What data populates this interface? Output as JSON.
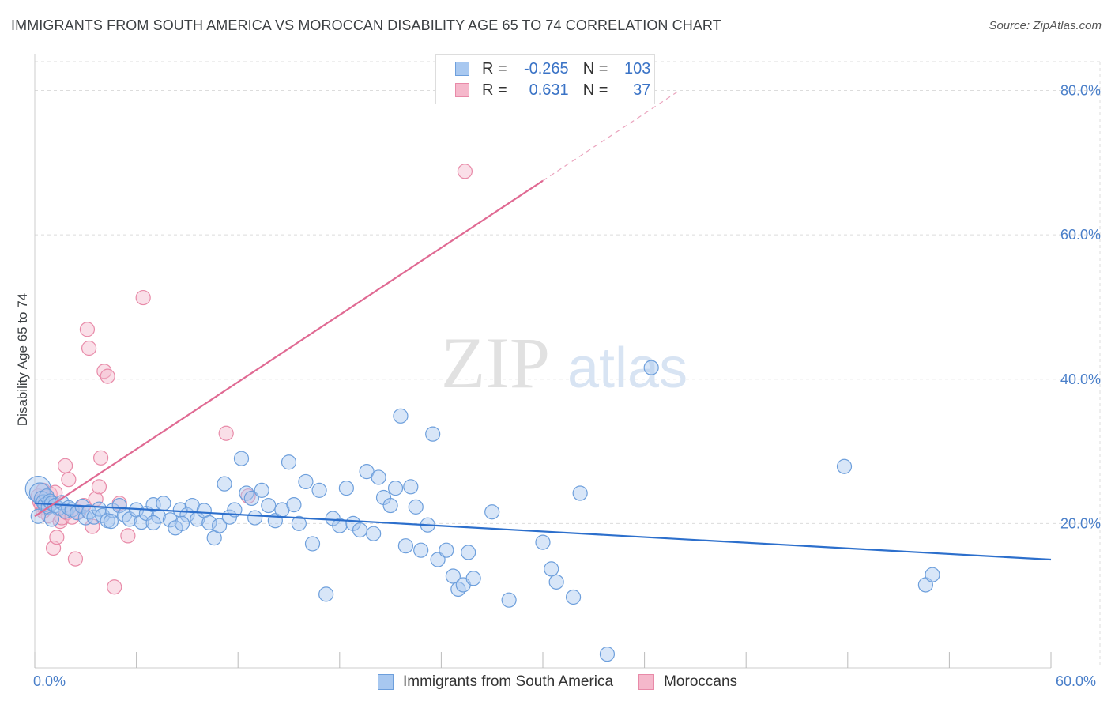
{
  "title": "IMMIGRANTS FROM SOUTH AMERICA VS MOROCCAN DISABILITY AGE 65 TO 74 CORRELATION CHART",
  "source": "Source: ZipAtlas.com",
  "watermark": {
    "zip": "ZIP",
    "atlas": "atlas"
  },
  "legend": {
    "series1": {
      "r_label": "R =",
      "r_value": "-0.265",
      "n_label": "N =",
      "n_value": "103"
    },
    "series2": {
      "r_label": "R =",
      "r_value": "0.631",
      "n_label": "N =",
      "n_value": "37"
    }
  },
  "bottom_legend": {
    "series1": "Immigrants from South America",
    "series2": "Moroccans"
  },
  "x_axis_labels": {
    "min": "0.0%",
    "max": "60.0%"
  },
  "colors": {
    "blue_fill": "#a8c8f0",
    "blue_stroke": "#6d9fdc",
    "blue_line": "#2c6fcc",
    "pink_fill": "#f5b8cb",
    "pink_stroke": "#e88aa8",
    "pink_line": "#e06a93",
    "axis_text": "#4a7fc9",
    "grid": "#dcdcdc"
  },
  "chart_data": {
    "type": "scatter",
    "title": "IMMIGRANTS FROM SOUTH AMERICA VS MOROCCAN DISABILITY AGE 65 TO 74 CORRELATION CHART",
    "xlabel": "",
    "ylabel": "Disability Age 65 to 74",
    "xlim": [
      0,
      60
    ],
    "ylim": [
      0,
      84
    ],
    "y_ticks": [
      20,
      40,
      60,
      80
    ],
    "y_tick_labels": [
      "20.0%",
      "40.0%",
      "60.0%",
      "80.0%"
    ],
    "grid": true,
    "series": [
      {
        "name": "Immigrants from South America",
        "R": -0.265,
        "N": 103,
        "trend": {
          "x0": 0,
          "y0": 22.8,
          "x1": 60,
          "y1": 15.0
        },
        "points": [
          [
            0.2,
            24.8
          ],
          [
            0.3,
            24.2
          ],
          [
            0.4,
            23.5
          ],
          [
            0.5,
            23.0
          ],
          [
            0.6,
            22.6
          ],
          [
            0.7,
            23.8
          ],
          [
            0.8,
            22.3
          ],
          [
            0.9,
            23.1
          ],
          [
            1.0,
            22.8
          ],
          [
            1.2,
            22.5
          ],
          [
            1.4,
            22.1
          ],
          [
            1.6,
            22.9
          ],
          [
            1.8,
            21.7
          ],
          [
            2.0,
            22.2
          ],
          [
            2.2,
            21.9
          ],
          [
            2.5,
            21.5
          ],
          [
            2.8,
            22.4
          ],
          [
            3.0,
            20.8
          ],
          [
            3.2,
            21.6
          ],
          [
            3.5,
            20.9
          ],
          [
            3.8,
            22.0
          ],
          [
            4.0,
            21.1
          ],
          [
            4.3,
            20.4
          ],
          [
            4.6,
            21.8
          ],
          [
            5.0,
            22.5
          ],
          [
            5.3,
            21.2
          ],
          [
            5.6,
            20.6
          ],
          [
            6.0,
            21.9
          ],
          [
            6.3,
            20.2
          ],
          [
            6.6,
            21.4
          ],
          [
            7.0,
            22.6
          ],
          [
            7.3,
            21.0
          ],
          [
            7.6,
            22.8
          ],
          [
            8.0,
            20.5
          ],
          [
            8.3,
            19.4
          ],
          [
            8.6,
            21.9
          ],
          [
            9.0,
            21.2
          ],
          [
            9.3,
            22.5
          ],
          [
            9.6,
            20.6
          ],
          [
            10.0,
            21.8
          ],
          [
            10.3,
            20.1
          ],
          [
            10.6,
            18.0
          ],
          [
            10.9,
            19.7
          ],
          [
            11.2,
            25.5
          ],
          [
            11.5,
            20.9
          ],
          [
            11.8,
            21.9
          ],
          [
            12.2,
            29.0
          ],
          [
            12.5,
            24.2
          ],
          [
            12.8,
            23.5
          ],
          [
            13.0,
            20.8
          ],
          [
            13.4,
            24.6
          ],
          [
            13.8,
            22.5
          ],
          [
            14.2,
            20.4
          ],
          [
            14.6,
            21.9
          ],
          [
            15.0,
            28.5
          ],
          [
            15.3,
            22.6
          ],
          [
            15.6,
            20.0
          ],
          [
            16.0,
            25.8
          ],
          [
            16.4,
            17.2
          ],
          [
            16.8,
            24.6
          ],
          [
            17.2,
            10.2
          ],
          [
            17.6,
            20.7
          ],
          [
            18.0,
            19.7
          ],
          [
            18.4,
            24.9
          ],
          [
            18.8,
            20.0
          ],
          [
            19.2,
            19.1
          ],
          [
            19.6,
            27.2
          ],
          [
            20.0,
            18.6
          ],
          [
            20.3,
            26.4
          ],
          [
            20.6,
            23.6
          ],
          [
            21.0,
            22.5
          ],
          [
            21.3,
            24.9
          ],
          [
            21.6,
            34.9
          ],
          [
            21.9,
            16.9
          ],
          [
            22.2,
            25.1
          ],
          [
            22.5,
            22.3
          ],
          [
            22.8,
            16.3
          ],
          [
            23.2,
            19.8
          ],
          [
            23.5,
            32.4
          ],
          [
            23.8,
            15.0
          ],
          [
            24.3,
            16.3
          ],
          [
            24.7,
            12.7
          ],
          [
            25.0,
            10.9
          ],
          [
            25.3,
            11.5
          ],
          [
            25.6,
            16.0
          ],
          [
            25.9,
            12.4
          ],
          [
            27.0,
            21.6
          ],
          [
            28.0,
            9.4
          ],
          [
            30.0,
            17.4
          ],
          [
            30.5,
            13.7
          ],
          [
            30.8,
            11.9
          ],
          [
            31.8,
            9.8
          ],
          [
            32.2,
            24.2
          ],
          [
            33.8,
            1.9
          ],
          [
            36.4,
            41.6
          ],
          [
            47.8,
            27.9
          ],
          [
            52.6,
            11.5
          ],
          [
            53.0,
            12.9
          ],
          [
            0.2,
            21.0
          ],
          [
            1.0,
            20.6
          ],
          [
            4.5,
            20.3
          ],
          [
            7.0,
            20.1
          ],
          [
            8.7,
            20.0
          ]
        ]
      },
      {
        "name": "Moroccans",
        "R": 0.631,
        "N": 37,
        "trend": {
          "x0": 0,
          "y0": 21.0,
          "x1": 30,
          "y1": 67.5
        },
        "points": [
          [
            0.2,
            23.8
          ],
          [
            0.3,
            23.0
          ],
          [
            0.4,
            22.5
          ],
          [
            0.5,
            24.6
          ],
          [
            0.6,
            22.2
          ],
          [
            0.7,
            23.6
          ],
          [
            0.8,
            21.1
          ],
          [
            0.9,
            24.1
          ],
          [
            1.0,
            22.9
          ],
          [
            1.1,
            16.6
          ],
          [
            1.3,
            18.1
          ],
          [
            1.5,
            20.3
          ],
          [
            1.6,
            20.8
          ],
          [
            1.8,
            28.0
          ],
          [
            1.9,
            21.5
          ],
          [
            2.0,
            26.1
          ],
          [
            2.2,
            20.9
          ],
          [
            2.4,
            15.1
          ],
          [
            2.6,
            21.6
          ],
          [
            2.9,
            22.5
          ],
          [
            3.1,
            46.9
          ],
          [
            3.2,
            44.3
          ],
          [
            3.4,
            19.6
          ],
          [
            3.6,
            23.4
          ],
          [
            3.8,
            25.1
          ],
          [
            3.9,
            29.1
          ],
          [
            4.1,
            41.1
          ],
          [
            4.3,
            40.4
          ],
          [
            4.7,
            11.2
          ],
          [
            5.0,
            22.8
          ],
          [
            5.5,
            18.3
          ],
          [
            6.4,
            51.3
          ],
          [
            11.3,
            32.5
          ],
          [
            12.6,
            23.8
          ],
          [
            25.4,
            68.8
          ],
          [
            0.5,
            21.7
          ],
          [
            1.2,
            24.3
          ]
        ]
      }
    ]
  }
}
